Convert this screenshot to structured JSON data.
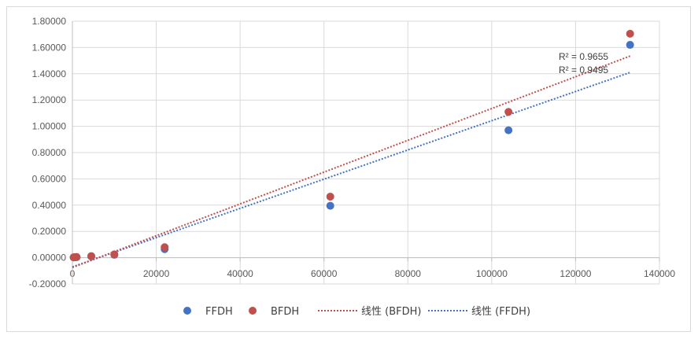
{
  "chart_data": {
    "type": "scatter",
    "title": "",
    "xlabel": "",
    "ylabel": "",
    "xlim": [
      0,
      140000
    ],
    "ylim": [
      -0.2,
      1.8
    ],
    "x_ticks": [
      "0",
      "20000",
      "40000",
      "60000",
      "80000",
      "100000",
      "120000",
      "140000"
    ],
    "y_ticks": [
      "-0.20000",
      "0.00000",
      "0.20000",
      "0.40000",
      "0.60000",
      "0.80000",
      "1.00000",
      "1.20000",
      "1.40000",
      "1.60000",
      "1.80000"
    ],
    "grid": true,
    "legend_position": "bottom",
    "series": [
      {
        "name": "FFDH",
        "color": "#4472c4",
        "points": [
          [
            300,
            0.002
          ],
          [
            700,
            0.003
          ],
          [
            1000,
            0.004
          ],
          [
            4500,
            0.01
          ],
          [
            10000,
            0.022
          ],
          [
            22000,
            0.065
          ],
          [
            61500,
            0.395
          ],
          [
            104000,
            0.97
          ],
          [
            133000,
            1.62
          ]
        ]
      },
      {
        "name": "BFDH",
        "color": "#c0504d",
        "points": [
          [
            300,
            0.003
          ],
          [
            700,
            0.004
          ],
          [
            1000,
            0.005
          ],
          [
            4500,
            0.012
          ],
          [
            10000,
            0.025
          ],
          [
            22000,
            0.08
          ],
          [
            61500,
            0.465
          ],
          [
            104000,
            1.11
          ],
          [
            133000,
            1.705
          ]
        ]
      }
    ],
    "trendlines": [
      {
        "name": "线性 (FFDH)",
        "color": "#4472c4",
        "x": [
          0,
          133000
        ],
        "y": [
          -0.07,
          1.41
        ],
        "r2_label": "R² = 0.9495"
      },
      {
        "name": "线性 (BFDH)",
        "color": "#c0504d",
        "x": [
          0,
          133000
        ],
        "y": [
          -0.075,
          1.535
        ],
        "r2_label": "R² = 0.9655"
      }
    ]
  }
}
